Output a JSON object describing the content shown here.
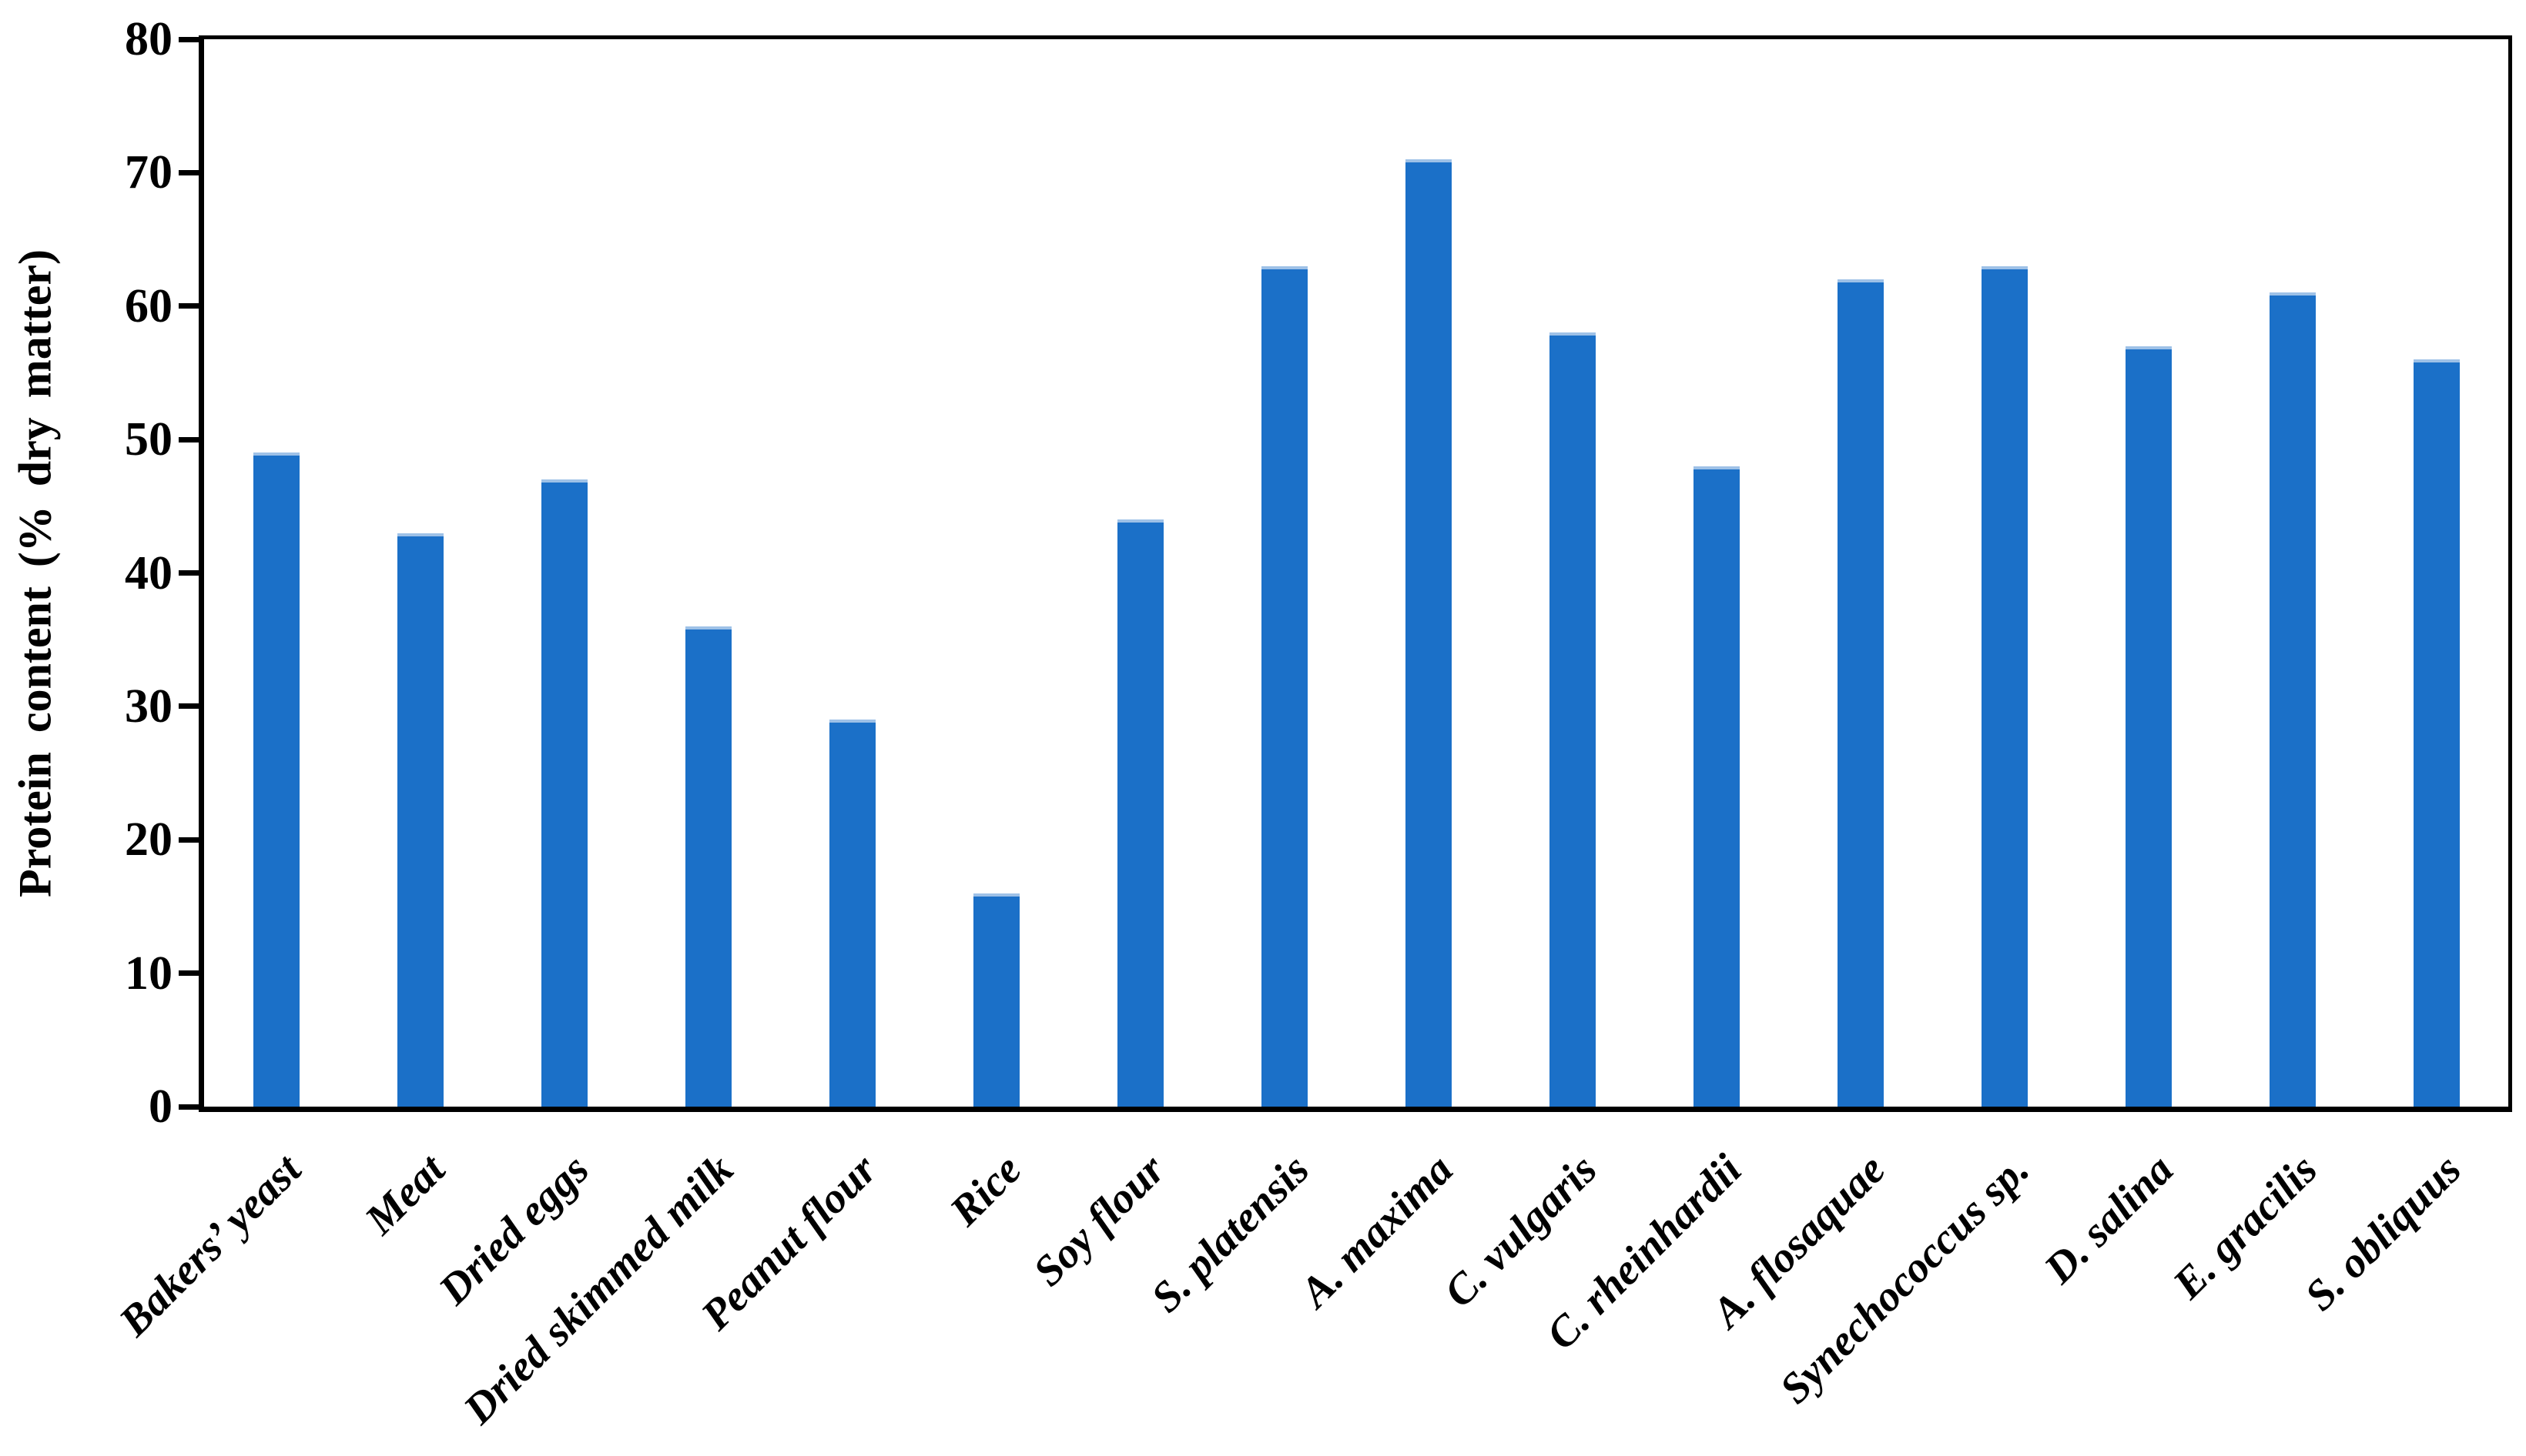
{
  "chart_data": {
    "type": "bar",
    "title": "",
    "xlabel": "",
    "ylabel": "Protein content (% dry matter)",
    "ylim": [
      0,
      80
    ],
    "ytick_step": 10,
    "ytick_labels": [
      "0",
      "10",
      "20",
      "30",
      "40",
      "50",
      "60",
      "70",
      "80"
    ],
    "grid": false,
    "legend_position": "none",
    "categories": [
      "Bakers’ yeast",
      "Meat",
      "Dried eggs",
      "Dried skimmed milk",
      "Peanut flour",
      "Rice",
      "Soy flour",
      "S. platensis",
      "A. maxima",
      "C. vulgaris",
      "C. rheinhardii",
      "A. flosaquae",
      "Synechococcus sp.",
      "D. salina",
      "E. gracilis",
      "S. obliquus"
    ],
    "values": [
      49,
      43,
      47,
      36,
      29,
      16,
      44,
      63,
      71,
      58,
      48,
      62,
      63,
      57,
      61,
      56
    ],
    "colors": {
      "bar_fill": "#1b70c8",
      "bar_top_highlight": "#9ec1e7",
      "axis": "#000000",
      "text": "#000000",
      "plot_background": "#ffffff"
    }
  }
}
